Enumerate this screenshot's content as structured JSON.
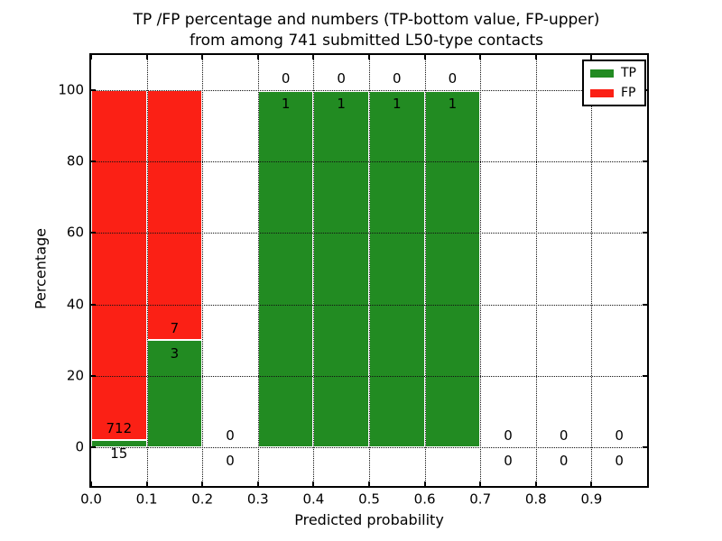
{
  "figure": {
    "title_line1": "TP /FP percentage and numbers (TP-bottom value, FP-upper)",
    "title_line2": "from among 741 submitted L50-type contacts",
    "background_color": "#ffffff"
  },
  "chart_data": {
    "type": "bar",
    "stacked": true,
    "title": "TP /FP percentage and numbers (TP-bottom value, FP-upper) from among 741 submitted L50-type contacts",
    "xlabel": "Predicted probability",
    "ylabel": "Percentage",
    "xlim": [
      0.0,
      1.0
    ],
    "ylim": [
      -12,
      110
    ],
    "grid": "dotted, both axes, drawn over bars",
    "legend_position": "upper right",
    "total_submitted": 741,
    "bin_width": 0.1,
    "bin_starts": [
      0.0,
      0.1,
      0.2,
      0.3,
      0.4,
      0.5,
      0.6,
      0.7,
      0.8,
      0.9
    ],
    "series": [
      {
        "name": "TP",
        "color": "#228b22",
        "counts": [
          15,
          3,
          0,
          1,
          1,
          1,
          1,
          0,
          0,
          0
        ]
      },
      {
        "name": "FP",
        "color": "#fb2015",
        "counts": [
          712,
          7,
          0,
          0,
          0,
          0,
          0,
          0,
          0,
          0
        ]
      }
    ],
    "tp_percent_by_bin": [
      2.06,
      30,
      null,
      100,
      100,
      100,
      100,
      null,
      null,
      null
    ],
    "annotation_rule": "FP count printed above top of TP bar, TP count printed below",
    "x_ticks": [
      {
        "v": 0.0,
        "label": "0.0"
      },
      {
        "v": 0.1,
        "label": "0.1"
      },
      {
        "v": 0.2,
        "label": "0.2"
      },
      {
        "v": 0.3,
        "label": "0.3"
      },
      {
        "v": 0.4,
        "label": "0.4"
      },
      {
        "v": 0.5,
        "label": "0.5"
      },
      {
        "v": 0.6,
        "label": "0.6"
      },
      {
        "v": 0.7,
        "label": "0.7"
      },
      {
        "v": 0.8,
        "label": "0.8"
      },
      {
        "v": 0.9,
        "label": "0.9"
      }
    ],
    "y_ticks": [
      {
        "v": 0,
        "label": "0"
      },
      {
        "v": 20,
        "label": "20"
      },
      {
        "v": 40,
        "label": "40"
      },
      {
        "v": 60,
        "label": "60"
      },
      {
        "v": 80,
        "label": "80"
      },
      {
        "v": 100,
        "label": "100"
      }
    ],
    "legend": {
      "entries": [
        {
          "label": "TP",
          "color": "#228b22"
        },
        {
          "label": "FP",
          "color": "#fb2015"
        }
      ]
    }
  }
}
